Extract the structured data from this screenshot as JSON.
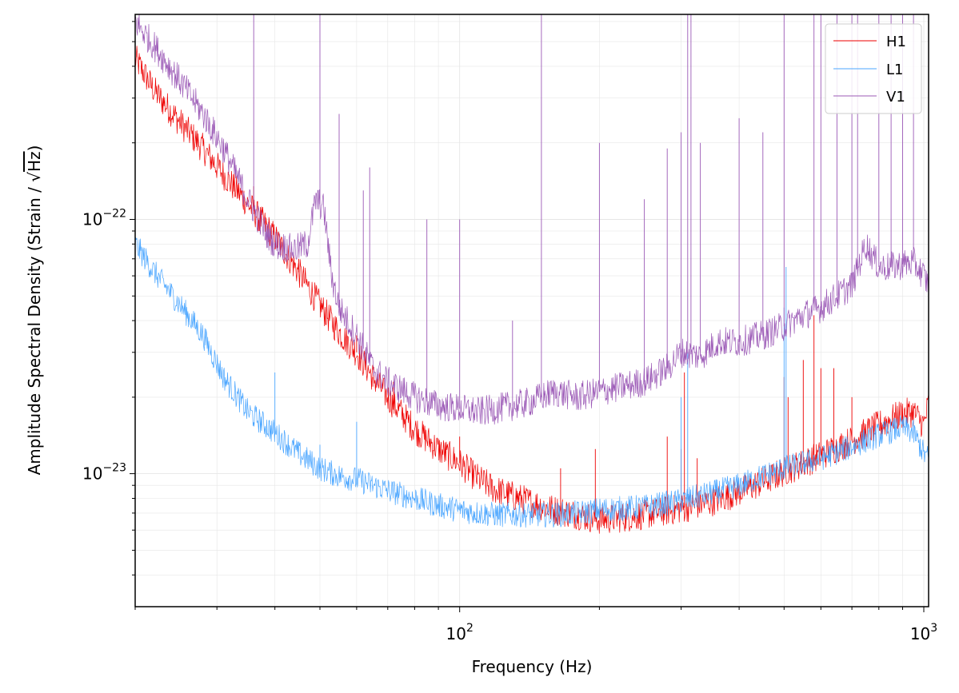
{
  "chart_data": {
    "type": "line",
    "title": "",
    "xlabel": "Frequency (Hz)",
    "ylabel_text": "Amplitude Spectral Density (Strain / ",
    "ylabel_sqrt_unit": "Hz",
    "ylabel_close": ")",
    "xscale": "log",
    "yscale": "log",
    "xlim": [
      20,
      1024
    ],
    "ylim": [
      3e-24,
      6.4e-22
    ],
    "grid": true,
    "legend_position": "top-right",
    "x_tick_labels": [
      {
        "value": 100,
        "base": "10",
        "exp": "2"
      },
      {
        "value": 1000,
        "base": "10",
        "exp": "3"
      }
    ],
    "y_tick_labels": [
      {
        "value": 1e-23,
        "base": "10",
        "exp": "−23"
      },
      {
        "value": 1e-22,
        "base": "10",
        "exp": "−22"
      }
    ],
    "series": [
      {
        "name": "H1",
        "color": "#ee0000",
        "points": [
          [
            20,
            4.3e-22
          ],
          [
            22,
            3.2e-22
          ],
          [
            25,
            2.4e-22
          ],
          [
            28,
            1.9e-22
          ],
          [
            31,
            1.5e-22
          ],
          [
            35,
            1.15e-22
          ],
          [
            40,
            8.5e-23
          ],
          [
            45,
            6.2e-23
          ],
          [
            50,
            4.6e-23
          ],
          [
            55,
            3.6e-23
          ],
          [
            60,
            3e-23
          ],
          [
            65,
            2.4e-23
          ],
          [
            70,
            2e-23
          ],
          [
            80,
            1.5e-23
          ],
          [
            90,
            1.25e-23
          ],
          [
            100,
            1.1e-23
          ],
          [
            110,
            9.5e-24
          ],
          [
            120,
            8.6e-24
          ],
          [
            140,
            7.8e-24
          ],
          [
            160,
            7.2e-24
          ],
          [
            180,
            6.9e-24
          ],
          [
            200,
            6.6e-24
          ],
          [
            220,
            6.7e-24
          ],
          [
            250,
            6.9e-24
          ],
          [
            300,
            7.3e-24
          ],
          [
            350,
            7.8e-24
          ],
          [
            400,
            8.5e-24
          ],
          [
            450,
            9.3e-24
          ],
          [
            500,
            1.02e-23
          ],
          [
            600,
            1.18e-23
          ],
          [
            700,
            1.35e-23
          ],
          [
            800,
            1.55e-23
          ],
          [
            900,
            1.72e-23
          ],
          [
            950,
            1.75e-23
          ],
          [
            1000,
            1.55e-23
          ],
          [
            1024,
            1.9e-23
          ]
        ],
        "lines": [
          [
            36,
            1.35e-22
          ],
          [
            37,
            9e-23
          ],
          [
            45,
            7e-23
          ],
          [
            60,
            3.5e-23
          ],
          [
            65,
            2.2e-23
          ],
          [
            72,
            2.3e-23
          ],
          [
            100,
            1.4e-23
          ],
          [
            165,
            1.05e-23
          ],
          [
            196,
            1.25e-23
          ],
          [
            280,
            1.4e-23
          ],
          [
            300,
            1.25e-23
          ],
          [
            305,
            2.5e-23
          ],
          [
            325,
            1.15e-23
          ],
          [
            500,
            2.4e-23
          ],
          [
            510,
            2e-23
          ],
          [
            550,
            2.8e-23
          ],
          [
            580,
            4.2e-23
          ],
          [
            600,
            2.6e-23
          ],
          [
            640,
            2.6e-23
          ],
          [
            700,
            2e-23
          ]
        ]
      },
      {
        "name": "L1",
        "color": "#4ba6ff",
        "points": [
          [
            20,
            8e-23
          ],
          [
            22,
            6.2e-23
          ],
          [
            25,
            4.6e-23
          ],
          [
            28,
            3.5e-23
          ],
          [
            31,
            2.4e-23
          ],
          [
            35,
            1.75e-23
          ],
          [
            40,
            1.45e-23
          ],
          [
            45,
            1.2e-23
          ],
          [
            50,
            1.05e-23
          ],
          [
            55,
            9.8e-24
          ],
          [
            60,
            9.5e-24
          ],
          [
            65,
            9e-24
          ],
          [
            70,
            8.6e-24
          ],
          [
            80,
            8e-24
          ],
          [
            90,
            7.5e-24
          ],
          [
            100,
            7.2e-24
          ],
          [
            110,
            7e-24
          ],
          [
            120,
            6.9e-24
          ],
          [
            140,
            6.9e-24
          ],
          [
            160,
            6.9e-24
          ],
          [
            180,
            7e-24
          ],
          [
            200,
            7.2e-24
          ],
          [
            250,
            7.4e-24
          ],
          [
            300,
            7.8e-24
          ],
          [
            350,
            8.4e-24
          ],
          [
            400,
            9e-24
          ],
          [
            450,
            9.8e-24
          ],
          [
            500,
            1.05e-23
          ],
          [
            600,
            1.15e-23
          ],
          [
            700,
            1.28e-23
          ],
          [
            800,
            1.42e-23
          ],
          [
            900,
            1.52e-23
          ],
          [
            950,
            1.45e-23
          ],
          [
            1000,
            1.2e-23
          ],
          [
            1024,
            1.15e-23
          ]
        ],
        "lines": [
          [
            40,
            2.5e-23
          ],
          [
            50,
            1.3e-23
          ],
          [
            60,
            1.6e-23
          ],
          [
            300,
            2e-23
          ],
          [
            310,
            3e-23
          ],
          [
            500,
            4.5e-23
          ],
          [
            505,
            6.5e-23
          ]
        ]
      },
      {
        "name": "V1",
        "color": "#9b59b6",
        "points": [
          [
            20,
            6e-22
          ],
          [
            22,
            4.8e-22
          ],
          [
            25,
            3.5e-22
          ],
          [
            28,
            2.6e-22
          ],
          [
            31,
            1.9e-22
          ],
          [
            35,
            1.2e-22
          ],
          [
            38,
            9e-23
          ],
          [
            40,
            8e-23
          ],
          [
            44,
            7.6e-23
          ],
          [
            47,
            8e-23
          ],
          [
            49,
            1.2e-22
          ],
          [
            51,
            1.1e-22
          ],
          [
            53,
            6e-23
          ],
          [
            55,
            4.5e-23
          ],
          [
            60,
            3.5e-23
          ],
          [
            65,
            2.6e-23
          ],
          [
            70,
            2.3e-23
          ],
          [
            80,
            2e-23
          ],
          [
            90,
            1.85e-23
          ],
          [
            100,
            1.8e-23
          ],
          [
            110,
            1.75e-23
          ],
          [
            120,
            1.8e-23
          ],
          [
            140,
            1.9e-23
          ],
          [
            160,
            2.1e-23
          ],
          [
            180,
            2e-23
          ],
          [
            200,
            2.1e-23
          ],
          [
            250,
            2.3e-23
          ],
          [
            280,
            2.6e-23
          ],
          [
            300,
            3e-23
          ],
          [
            330,
            2.9e-23
          ],
          [
            360,
            3.3e-23
          ],
          [
            400,
            3.3e-23
          ],
          [
            450,
            3.5e-23
          ],
          [
            500,
            3.8e-23
          ],
          [
            550,
            4.2e-23
          ],
          [
            600,
            4.5e-23
          ],
          [
            650,
            5e-23
          ],
          [
            700,
            5.5e-23
          ],
          [
            750,
            8e-23
          ],
          [
            800,
            6.5e-23
          ],
          [
            850,
            6.5e-23
          ],
          [
            950,
            6.8e-23
          ],
          [
            1000,
            6e-23
          ],
          [
            1024,
            5.5e-23
          ]
        ],
        "lines": [
          [
            36,
            6.4e-22
          ],
          [
            50,
            6.4e-22
          ],
          [
            55,
            2.6e-22
          ],
          [
            62,
            1.3e-22
          ],
          [
            64,
            1.6e-22
          ],
          [
            85,
            1e-22
          ],
          [
            100,
            1e-22
          ],
          [
            130,
            4e-23
          ],
          [
            150,
            6.4e-22
          ],
          [
            200,
            2e-22
          ],
          [
            250,
            1.2e-22
          ],
          [
            280,
            1.9e-22
          ],
          [
            300,
            2.2e-22
          ],
          [
            310,
            6.4e-22
          ],
          [
            315,
            6.4e-22
          ],
          [
            330,
            2e-22
          ],
          [
            400,
            2.5e-22
          ],
          [
            450,
            2.2e-22
          ],
          [
            500,
            6.4e-22
          ],
          [
            580,
            6.4e-22
          ],
          [
            600,
            6.4e-22
          ],
          [
            650,
            6.4e-22
          ],
          [
            700,
            6.4e-22
          ],
          [
            720,
            6.4e-22
          ],
          [
            800,
            6.4e-22
          ],
          [
            850,
            6.4e-22
          ],
          [
            900,
            6.4e-22
          ],
          [
            950,
            6.4e-22
          ]
        ]
      }
    ]
  }
}
